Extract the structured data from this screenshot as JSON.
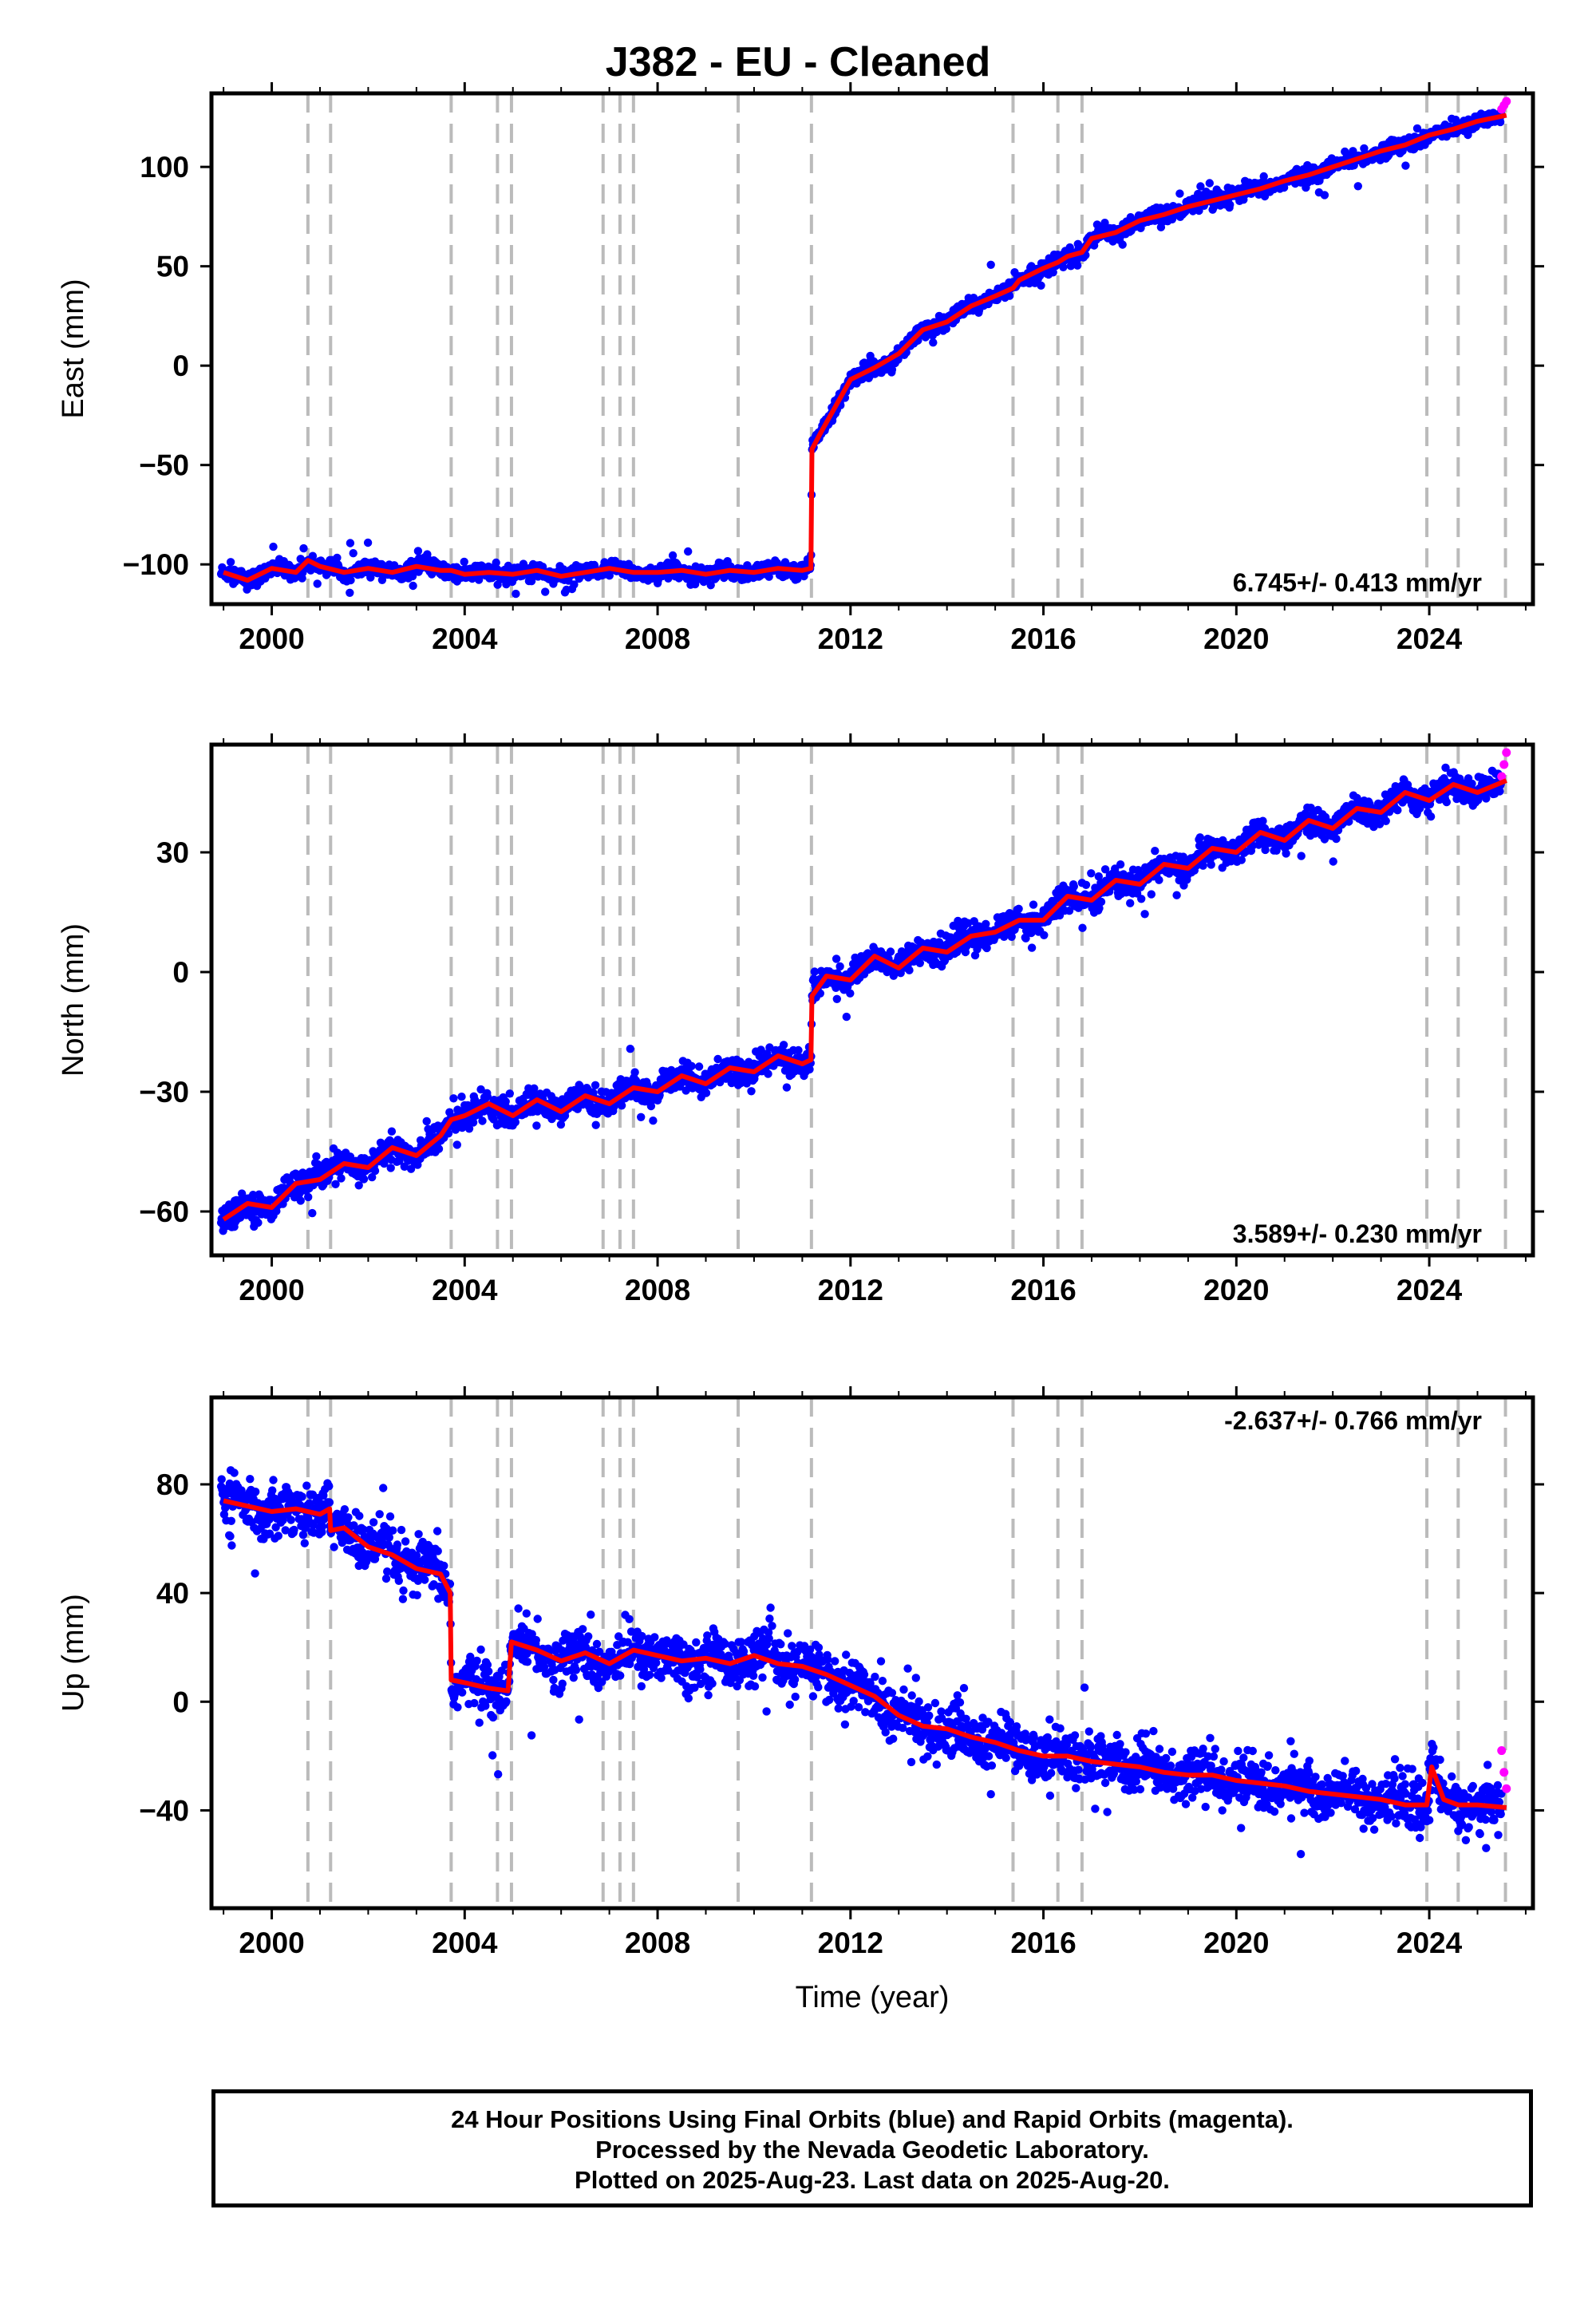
{
  "title": "J382  - EU - Cleaned",
  "colors": {
    "final_orbits": "#0000ff",
    "rapid_orbits": "#ff00ff",
    "model": "#ff0000",
    "event_lines": "#bbbbbb"
  },
  "caption": {
    "line1": "24 Hour Positions Using Final Orbits (blue) and Rapid Orbits (magenta).",
    "line2": "Processed by the Nevada Geodetic Laboratory.",
    "line3": "Plotted on 2025-Aug-23. Last data on 2025-Aug-20."
  },
  "chart_data": [
    {
      "type": "scatter",
      "ylabel": "East (mm)",
      "xlabel": "",
      "rate_text": "6.745+/- 0.413 mm/yr",
      "rate_position": "bottom-right",
      "xlim": [
        1998.75,
        2026.15
      ],
      "ylim": [
        -120,
        137
      ],
      "x_ticks": [
        2000,
        2004,
        2008,
        2012,
        2016,
        2020,
        2024
      ],
      "y_ticks": [
        -100,
        -50,
        0,
        50,
        100
      ],
      "y_tick_labels": [
        "−100",
        "−50",
        "0",
        "50",
        "100"
      ],
      "event_lines": [
        2000.75,
        2001.22,
        2003.72,
        2004.68,
        2004.97,
        2006.87,
        2007.22,
        2007.5,
        2009.67,
        2011.19,
        2015.37,
        2016.3,
        2016.8,
        2023.95,
        2024.6,
        2025.58
      ],
      "model_x": [
        1999.0,
        1999.5,
        2000.0,
        2000.5,
        2000.75,
        2001.0,
        2001.5,
        2002.0,
        2002.5,
        2003.0,
        2003.5,
        2003.72,
        2004.0,
        2004.5,
        2005.0,
        2005.5,
        2006.0,
        2006.5,
        2007.0,
        2007.5,
        2008.0,
        2008.5,
        2009.0,
        2009.5,
        2010.0,
        2010.5,
        2011.0,
        2011.18,
        2011.2,
        2011.4,
        2011.7,
        2012.0,
        2012.5,
        2013.0,
        2013.5,
        2014.0,
        2014.5,
        2015.0,
        2015.37,
        2015.5,
        2016.0,
        2016.3,
        2016.5,
        2016.8,
        2017.0,
        2017.5,
        2018.0,
        2018.5,
        2019.0,
        2019.5,
        2020.0,
        2020.5,
        2021.0,
        2021.5,
        2022.0,
        2022.5,
        2023.0,
        2023.5,
        2024.0,
        2024.5,
        2025.0,
        2025.6
      ],
      "model_y": [
        -104,
        -108,
        -102,
        -104,
        -98,
        -101,
        -104,
        -102,
        -104,
        -101,
        -103,
        -103,
        -105,
        -104,
        -105,
        -103,
        -106,
        -104,
        -102,
        -104,
        -104,
        -103,
        -105,
        -103,
        -104,
        -102,
        -103,
        -102,
        -42,
        -33,
        -20,
        -7,
        -1,
        6,
        18,
        22,
        30,
        35,
        39,
        43,
        49,
        52,
        55,
        57,
        64,
        67,
        73,
        76,
        80,
        83,
        86,
        89,
        93,
        96,
        100,
        104,
        108,
        111,
        116,
        119,
        123,
        126
      ],
      "final_scatter_mm": 3.5,
      "rapid_x": [
        2025.5,
        2025.55,
        2025.6
      ],
      "rapid_y": [
        129,
        131,
        133
      ]
    },
    {
      "type": "scatter",
      "ylabel": "North (mm)",
      "xlabel": "",
      "rate_text": "3.589+/- 0.230 mm/yr",
      "rate_position": "bottom-right",
      "xlim": [
        1998.75,
        2026.15
      ],
      "ylim": [
        -71,
        57
      ],
      "x_ticks": [
        2000,
        2004,
        2008,
        2012,
        2016,
        2020,
        2024
      ],
      "y_ticks": [
        -60,
        -30,
        0,
        30
      ],
      "y_tick_labels": [
        "−60",
        "−30",
        "0",
        "30"
      ],
      "event_lines": [
        2000.75,
        2001.22,
        2003.72,
        2004.68,
        2004.97,
        2006.87,
        2007.22,
        2007.5,
        2009.67,
        2011.19,
        2015.37,
        2016.3,
        2016.8,
        2023.95,
        2024.6,
        2025.58
      ],
      "model_x": [
        1999.0,
        1999.5,
        2000.0,
        2000.5,
        2001.0,
        2001.5,
        2002.0,
        2002.5,
        2003.0,
        2003.5,
        2003.72,
        2004.0,
        2004.5,
        2005.0,
        2005.5,
        2006.0,
        2006.5,
        2007.0,
        2007.5,
        2008.0,
        2008.5,
        2009.0,
        2009.5,
        2010.0,
        2010.5,
        2011.0,
        2011.18,
        2011.2,
        2011.5,
        2012.0,
        2012.5,
        2013.0,
        2013.5,
        2014.0,
        2014.5,
        2015.0,
        2015.5,
        2016.0,
        2016.5,
        2017.0,
        2017.5,
        2018.0,
        2018.5,
        2019.0,
        2019.5,
        2020.0,
        2020.5,
        2021.0,
        2021.5,
        2022.0,
        2022.5,
        2023.0,
        2023.5,
        2024.0,
        2024.5,
        2025.0,
        2025.6
      ],
      "model_y": [
        -62,
        -58,
        -59,
        -53,
        -52,
        -48,
        -49,
        -44,
        -46,
        -41,
        -37,
        -36,
        -33,
        -36,
        -32,
        -35,
        -31,
        -33,
        -29,
        -30,
        -26,
        -28,
        -24,
        -25,
        -21,
        -23,
        -22,
        -6,
        -1,
        -2,
        4,
        1,
        6,
        5,
        9,
        10,
        13,
        13,
        19,
        18,
        23,
        22,
        27,
        26,
        31,
        30,
        35,
        33,
        38,
        36,
        41,
        40,
        45,
        43,
        47,
        45,
        48
      ],
      "final_scatter_mm": 3.0,
      "rapid_x": [
        2025.5,
        2025.55,
        2025.6
      ],
      "rapid_y": [
        49,
        52,
        55
      ]
    },
    {
      "type": "scatter",
      "ylabel": "Up (mm)",
      "xlabel": "Time (year)",
      "rate_text": "-2.637+/- 0.766 mm/yr",
      "rate_position": "top-right",
      "xlim": [
        1998.75,
        2026.15
      ],
      "ylim": [
        -76,
        112
      ],
      "x_ticks": [
        2000,
        2004,
        2008,
        2012,
        2016,
        2020,
        2024
      ],
      "y_ticks": [
        -40,
        0,
        40,
        80
      ],
      "y_tick_labels": [
        "−40",
        "0",
        "40",
        "80"
      ],
      "event_lines": [
        2000.75,
        2001.22,
        2003.72,
        2004.68,
        2004.97,
        2006.87,
        2007.22,
        2007.5,
        2009.67,
        2011.19,
        2015.37,
        2016.3,
        2016.8,
        2023.95,
        2024.6,
        2025.58
      ],
      "model_x": [
        1999.0,
        1999.5,
        2000.0,
        2000.5,
        2001.0,
        2001.2,
        2001.22,
        2001.5,
        2002.0,
        2002.5,
        2003.0,
        2003.5,
        2003.7,
        2003.72,
        2004.0,
        2004.5,
        2004.9,
        2004.97,
        2005.5,
        2006.0,
        2006.5,
        2007.0,
        2007.5,
        2008.0,
        2008.5,
        2009.0,
        2009.5,
        2010.0,
        2010.5,
        2011.0,
        2011.5,
        2012.0,
        2012.5,
        2013.0,
        2013.5,
        2014.0,
        2014.5,
        2015.0,
        2015.5,
        2016.0,
        2016.5,
        2017.0,
        2017.5,
        2018.0,
        2018.5,
        2019.0,
        2019.5,
        2020.0,
        2020.5,
        2021.0,
        2021.5,
        2022.0,
        2022.5,
        2023.0,
        2023.5,
        2023.95,
        2024.05,
        2024.3,
        2024.6,
        2025.0,
        2025.6
      ],
      "model_y": [
        74,
        72,
        70,
        71,
        69,
        71,
        63,
        64,
        57,
        54,
        49,
        47,
        40,
        8,
        7,
        5,
        4,
        22,
        19,
        15,
        18,
        14,
        19,
        17,
        15,
        16,
        14,
        17,
        14,
        13,
        10,
        6,
        2,
        -5,
        -9,
        -10,
        -13,
        -15,
        -18,
        -20,
        -20,
        -22,
        -23,
        -24,
        -26,
        -27,
        -27,
        -29,
        -30,
        -31,
        -33,
        -34,
        -35,
        -36,
        -38,
        -38,
        -24,
        -36,
        -38,
        -38,
        -39
      ],
      "final_scatter_mm": 8.5,
      "rapid_x": [
        2025.5,
        2025.55,
        2025.6
      ],
      "rapid_y": [
        -18,
        -26,
        -32
      ]
    }
  ]
}
